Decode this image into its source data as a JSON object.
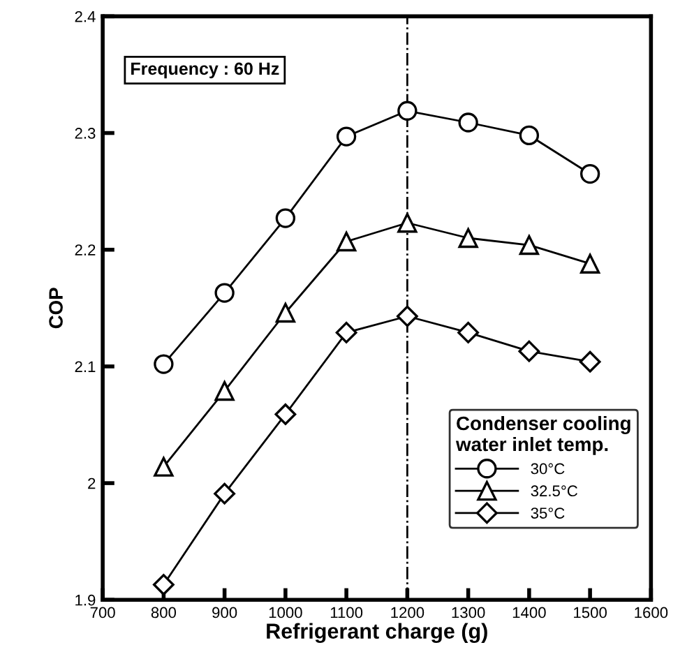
{
  "chart_data": {
    "type": "line",
    "xlabel": "Refrigerant charge (g)",
    "ylabel": "COP",
    "legend_title": "Condenser cooling\nwater inlet temp.",
    "legend": "bottom right",
    "annotations": [
      "Frequency : 60 Hz"
    ],
    "x": [
      800,
      900,
      1000,
      1100,
      1200,
      1300,
      1400,
      1500
    ],
    "series": [
      {
        "name": "30°C",
        "color": "#000000",
        "marker": "circle",
        "values": [
          2.102,
          2.163,
          2.227,
          2.297,
          2.319,
          2.309,
          2.298,
          2.265
        ]
      },
      {
        "name": "32.5°C",
        "color": "#000000",
        "marker": "triangle",
        "values": [
          2.014,
          2.079,
          2.146,
          2.207,
          2.223,
          2.21,
          2.204,
          2.188
        ]
      },
      {
        "name": "35°C",
        "color": "#000000",
        "marker": "diamond",
        "values": [
          1.913,
          1.991,
          2.059,
          2.129,
          2.143,
          2.129,
          2.113,
          2.104
        ]
      }
    ],
    "ref_lines": [
      {
        "axis": "x",
        "value": 1200,
        "color": "#000000",
        "line_style": "dashdot"
      }
    ],
    "xlim": [
      700,
      1600
    ],
    "xticks": [
      700,
      800,
      900,
      1000,
      1100,
      1200,
      1300,
      1400,
      1500,
      1600
    ],
    "ylim": [
      1.9,
      2.4
    ],
    "yticks": [
      1.9,
      2,
      2.1,
      2.2,
      2.3,
      2.4
    ],
    "grid": false
  }
}
